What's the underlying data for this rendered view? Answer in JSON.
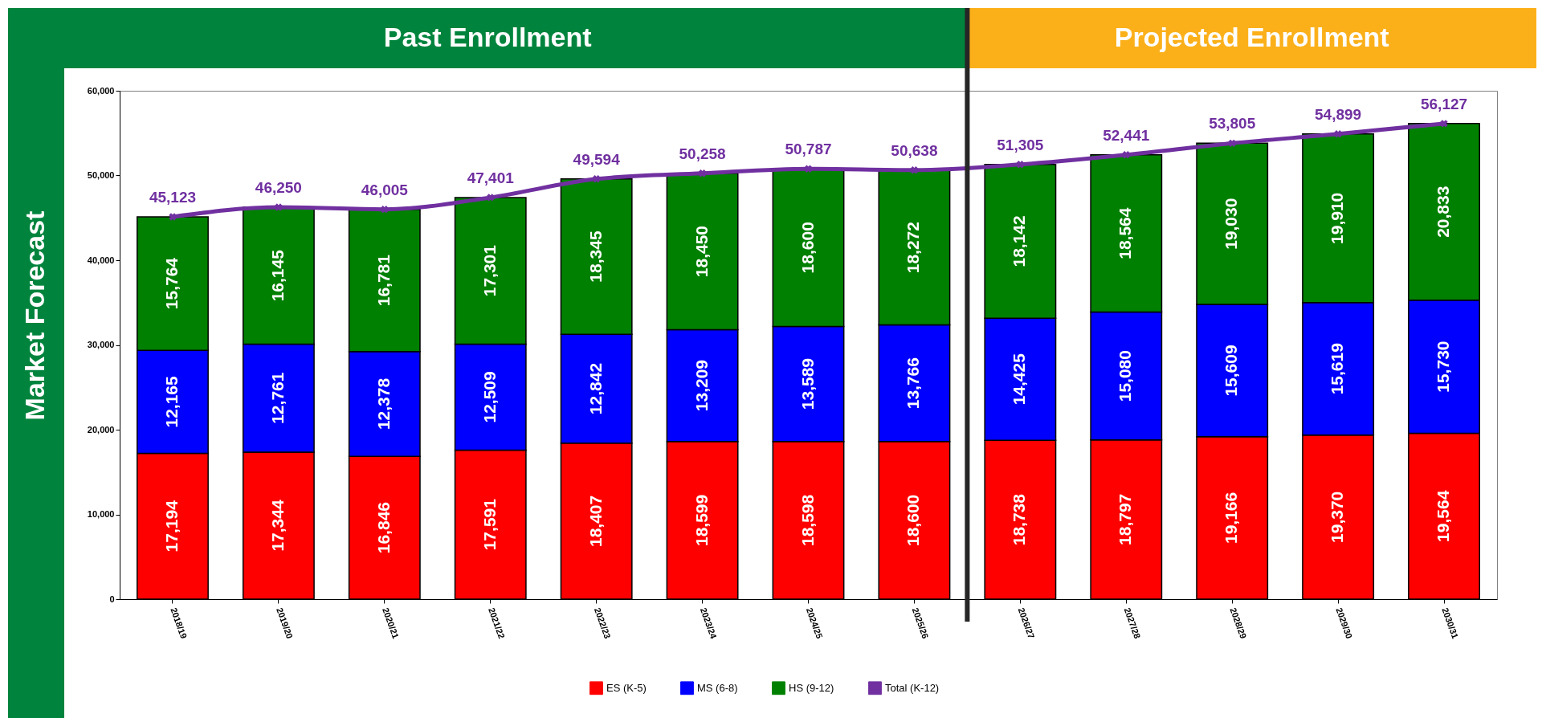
{
  "chart_data": {
    "type": "bar",
    "stacked": true,
    "ylabel": "Market Forecast",
    "annotations": [
      "Past Enrollment",
      "Projected Enrollment"
    ],
    "categories": [
      "2018/19",
      "2019/20",
      "2020/21",
      "2021/22",
      "2022/23",
      "2023/24",
      "2024/25",
      "2025/26",
      "2026/27",
      "2027/28",
      "2028/29",
      "2029/30",
      "2030/31"
    ],
    "series": [
      {
        "name": "ES (K-5)",
        "color": "#ff0000",
        "values": [
          17194,
          17344,
          16846,
          17591,
          18407,
          18599,
          18598,
          18600,
          18738,
          18797,
          19166,
          19370,
          19564
        ],
        "value_labels": [
          "17,194",
          "17,344",
          "16,846",
          "17,591",
          "18,407",
          "18,599",
          "18,598",
          "18,600",
          "18,738",
          "18,797",
          "19,166",
          "19,370",
          "19,564"
        ]
      },
      {
        "name": "MS (6-8)",
        "color": "#0000ff",
        "values": [
          12165,
          12761,
          12378,
          12509,
          12842,
          13209,
          13589,
          13766,
          14425,
          15080,
          15609,
          15619,
          15730
        ],
        "value_labels": [
          "12,165",
          "12,761",
          "12,378",
          "12,509",
          "12,842",
          "13,209",
          "13,589",
          "13,766",
          "14,425",
          "15,080",
          "15,609",
          "15,619",
          "15,730"
        ]
      },
      {
        "name": "HS (9-12)",
        "color": "#008000",
        "values": [
          15764,
          16145,
          16781,
          17301,
          18345,
          18450,
          18600,
          18272,
          18142,
          18564,
          19030,
          19910,
          20833
        ],
        "value_labels": [
          "15,764",
          "16,145",
          "16,781",
          "17,301",
          "18,345",
          "18,450",
          "18,600",
          "18,272",
          "18,142",
          "18,564",
          "19,030",
          "19,910",
          "20,833"
        ]
      },
      {
        "name": "Total (K-12)",
        "type": "line",
        "color": "#7030a0",
        "values": [
          45123,
          46250,
          46005,
          47401,
          49594,
          50258,
          50787,
          50638,
          51305,
          52441,
          53805,
          54899,
          56127
        ],
        "value_labels": [
          "45,123",
          "46,250",
          "46,005",
          "47,401",
          "49,594",
          "50,258",
          "50,787",
          "50,638",
          "51,305",
          "52,441",
          "53,805",
          "54,899",
          "56,127"
        ]
      }
    ],
    "ylim": [
      0,
      60000
    ],
    "yticks": [
      0,
      {
        "value": 10000,
        "label": "10,000"
      },
      {
        "value": 20000,
        "label": "20,000"
      },
      {
        "value": 30000,
        "label": "30,000"
      },
      {
        "value": 40000,
        "label": "40,000"
      },
      {
        "value": 50000,
        "label": "50,000"
      },
      {
        "value": 60000,
        "label": "60,000"
      }
    ],
    "grid": false,
    "legend": "bottom",
    "marker": "cross",
    "line_style": "solid"
  }
}
